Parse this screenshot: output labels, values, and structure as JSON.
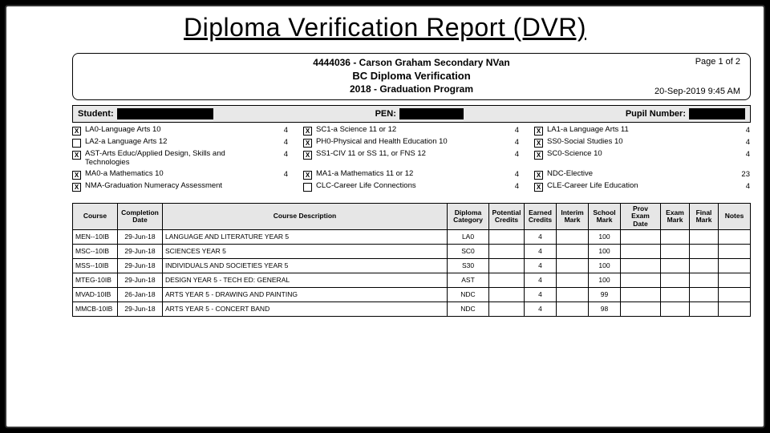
{
  "slide": {
    "title": "Diploma Verification Report (DVR)"
  },
  "header": {
    "school": "4444036 - Carson Graham Secondary NVan",
    "title": "BC Diploma Verification",
    "program": "2018 - Graduation Program",
    "page": "Page 1 of  2",
    "timestamp": "20-Sep-2019  9:45 AM"
  },
  "studentBar": {
    "studentLbl": "Student:",
    "penLbl": "PEN:",
    "pupilLbl": "Pupil Number:"
  },
  "reqs": {
    "col1": [
      {
        "x": true,
        "label": "LA0-Language Arts 10",
        "cr": "4"
      },
      {
        "x": false,
        "label": "LA2-a Language Arts 12",
        "cr": "4"
      },
      {
        "x": true,
        "label": "AST-Arts Educ/Applied Design, Skills and Technologies",
        "cr": "4"
      },
      {
        "x": true,
        "label": "MA0-a Mathematics 10",
        "cr": "4"
      },
      {
        "x": true,
        "label": "NMA-Graduation Numeracy Assessment",
        "cr": ""
      }
    ],
    "col2": [
      {
        "x": true,
        "label": "SC1-a Science 11 or 12",
        "cr": "4"
      },
      {
        "x": true,
        "label": "PH0-Physical and Health Education 10",
        "cr": "4"
      },
      {
        "x": true,
        "label": "SS1-CIV 11 or SS 11, or FNS 12",
        "cr": "4"
      },
      {
        "x": true,
        "label": "MA1-a Mathematics 11 or 12",
        "cr": "4"
      },
      {
        "x": false,
        "label": "CLC-Career Life Connections",
        "cr": "4"
      }
    ],
    "col3": [
      {
        "x": true,
        "label": "LA1-a Language Arts 11",
        "cr": "4"
      },
      {
        "x": true,
        "label": "SS0-Social Studies 10",
        "cr": "4"
      },
      {
        "x": true,
        "label": "SC0-Science 10",
        "cr": "4"
      },
      {
        "x": true,
        "label": "NDC-Elective",
        "cr": "23"
      },
      {
        "x": true,
        "label": "CLE-Career Life Education",
        "cr": "4"
      }
    ]
  },
  "table": {
    "headers": [
      "Course",
      "Completion Date",
      "Course Description",
      "Diploma Category",
      "Potential Credits",
      "Earned Credits",
      "Interim Mark",
      "School Mark",
      "Prov Exam Date",
      "Exam Mark",
      "Final Mark",
      "Notes"
    ],
    "rows": [
      {
        "course": "MEN--10IB",
        "date": "29-Jun-18",
        "desc": "LANGUAGE AND LITERATURE YEAR 5",
        "cat": "LA0",
        "pot": "",
        "earn": "4",
        "int": "",
        "sch": "100",
        "ped": "",
        "exm": "",
        "fin": "",
        "notes": ""
      },
      {
        "course": "MSC--10IB",
        "date": "29-Jun-18",
        "desc": "SCIENCES YEAR 5",
        "cat": "SC0",
        "pot": "",
        "earn": "4",
        "int": "",
        "sch": "100",
        "ped": "",
        "exm": "",
        "fin": "",
        "notes": ""
      },
      {
        "course": "MSS--10IB",
        "date": "29-Jun-18",
        "desc": "INDIVIDUALS AND SOCIETIES YEAR 5",
        "cat": "S30",
        "pot": "",
        "earn": "4",
        "int": "",
        "sch": "100",
        "ped": "",
        "exm": "",
        "fin": "",
        "notes": ""
      },
      {
        "course": "MTEG-10IB",
        "date": "29-Jun-18",
        "desc": "DESIGN YEAR 5 - TECH ED: GENERAL",
        "cat": "AST",
        "pot": "",
        "earn": "4",
        "int": "",
        "sch": "100",
        "ped": "",
        "exm": "",
        "fin": "",
        "notes": ""
      },
      {
        "course": "MVAD-10IB",
        "date": "26-Jan-18",
        "desc": "ARTS YEAR 5 - DRAWING AND PAINTING",
        "cat": "NDC",
        "pot": "",
        "earn": "4",
        "int": "",
        "sch": "99",
        "ped": "",
        "exm": "",
        "fin": "",
        "notes": ""
      },
      {
        "course": "MMCB-10IB",
        "date": "29-Jun-18",
        "desc": "ARTS YEAR 5 - CONCERT BAND",
        "cat": "NDC",
        "pot": "",
        "earn": "4",
        "int": "",
        "sch": "98",
        "ped": "",
        "exm": "",
        "fin": "",
        "notes": ""
      }
    ]
  },
  "colors": {
    "frameBg": "#ffffff",
    "pageBg": "#000000",
    "barBg": "#e8e8e8",
    "thBg": "#e6e6e6",
    "border": "#000000"
  }
}
